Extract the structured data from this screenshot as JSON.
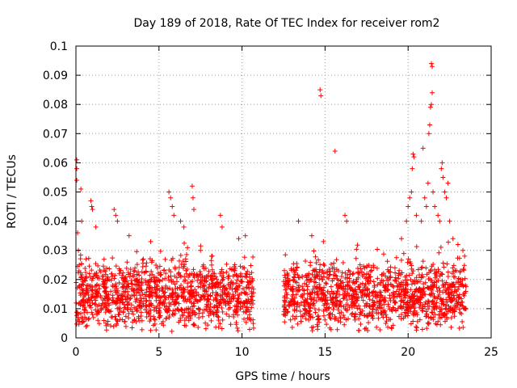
{
  "chart_data": {
    "type": "scatter",
    "title": "Day 189 of 2018, Rate Of TEC Index for receiver rom2",
    "xlabel": "GPS time / hours",
    "ylabel": "ROTI / TECUs",
    "xlim": [
      0,
      25
    ],
    "ylim": [
      0,
      0.1
    ],
    "xticks": [
      "0",
      "5",
      "10",
      "15",
      "20",
      "25"
    ],
    "yticks": [
      "0",
      "0.01",
      "0.02",
      "0.03",
      "0.04",
      "0.05",
      "0.06",
      "0.07",
      "0.08",
      "0.09",
      "0.1"
    ],
    "grid": true,
    "marker": "+",
    "color": "#ff0000",
    "series": [
      {
        "description_ranges": [
          {
            "x_from": 0.0,
            "x_to": 10.7,
            "y_from": 0.002,
            "y_to": 0.028
          },
          {
            "x_from": 12.5,
            "x_to": 23.5,
            "y_from": 0.002,
            "y_to": 0.028
          }
        ],
        "points": [
          [
            0.05,
            0.061
          ],
          [
            0.05,
            0.058
          ],
          [
            0.05,
            0.054
          ],
          [
            0.1,
            0.036
          ],
          [
            0.15,
            0.03
          ],
          [
            0.2,
            0.025
          ],
          [
            0.3,
            0.051
          ],
          [
            0.35,
            0.04
          ],
          [
            0.9,
            0.047
          ],
          [
            0.95,
            0.045
          ],
          [
            1.0,
            0.044
          ],
          [
            1.2,
            0.038
          ],
          [
            2.3,
            0.044
          ],
          [
            2.4,
            0.042
          ],
          [
            2.5,
            0.04
          ],
          [
            3.2,
            0.035
          ],
          [
            4.5,
            0.033
          ],
          [
            5.6,
            0.05
          ],
          [
            5.7,
            0.048
          ],
          [
            5.8,
            0.045
          ],
          [
            5.9,
            0.042
          ],
          [
            6.3,
            0.04
          ],
          [
            6.5,
            0.038
          ],
          [
            7.0,
            0.052
          ],
          [
            7.05,
            0.048
          ],
          [
            7.1,
            0.044
          ],
          [
            7.5,
            0.03
          ],
          [
            8.7,
            0.042
          ],
          [
            8.8,
            0.038
          ],
          [
            9.8,
            0.034
          ],
          [
            10.2,
            0.035
          ],
          [
            13.4,
            0.04
          ],
          [
            14.2,
            0.035
          ],
          [
            14.7,
            0.085
          ],
          [
            14.75,
            0.083
          ],
          [
            14.9,
            0.033
          ],
          [
            15.6,
            0.064
          ],
          [
            16.2,
            0.042
          ],
          [
            16.3,
            0.04
          ],
          [
            19.6,
            0.034
          ],
          [
            19.9,
            0.04
          ],
          [
            20.0,
            0.045
          ],
          [
            20.1,
            0.048
          ],
          [
            20.2,
            0.05
          ],
          [
            20.25,
            0.058
          ],
          [
            20.3,
            0.063
          ],
          [
            20.35,
            0.062
          ],
          [
            20.5,
            0.042
          ],
          [
            20.8,
            0.04
          ],
          [
            20.9,
            0.065
          ],
          [
            21.0,
            0.048
          ],
          [
            21.1,
            0.045
          ],
          [
            21.2,
            0.053
          ],
          [
            21.25,
            0.07
          ],
          [
            21.3,
            0.073
          ],
          [
            21.35,
            0.079
          ],
          [
            21.4,
            0.08
          ],
          [
            21.45,
            0.084
          ],
          [
            21.4,
            0.094
          ],
          [
            21.45,
            0.093
          ],
          [
            21.5,
            0.05
          ],
          [
            21.6,
            0.045
          ],
          [
            21.8,
            0.042
          ],
          [
            21.9,
            0.04
          ],
          [
            22.0,
            0.058
          ],
          [
            22.05,
            0.06
          ],
          [
            22.1,
            0.055
          ],
          [
            22.2,
            0.05
          ],
          [
            22.3,
            0.048
          ],
          [
            22.4,
            0.053
          ],
          [
            22.5,
            0.04
          ],
          [
            22.7,
            0.034
          ],
          [
            23.0,
            0.032
          ],
          [
            23.3,
            0.03
          ]
        ]
      }
    ]
  }
}
